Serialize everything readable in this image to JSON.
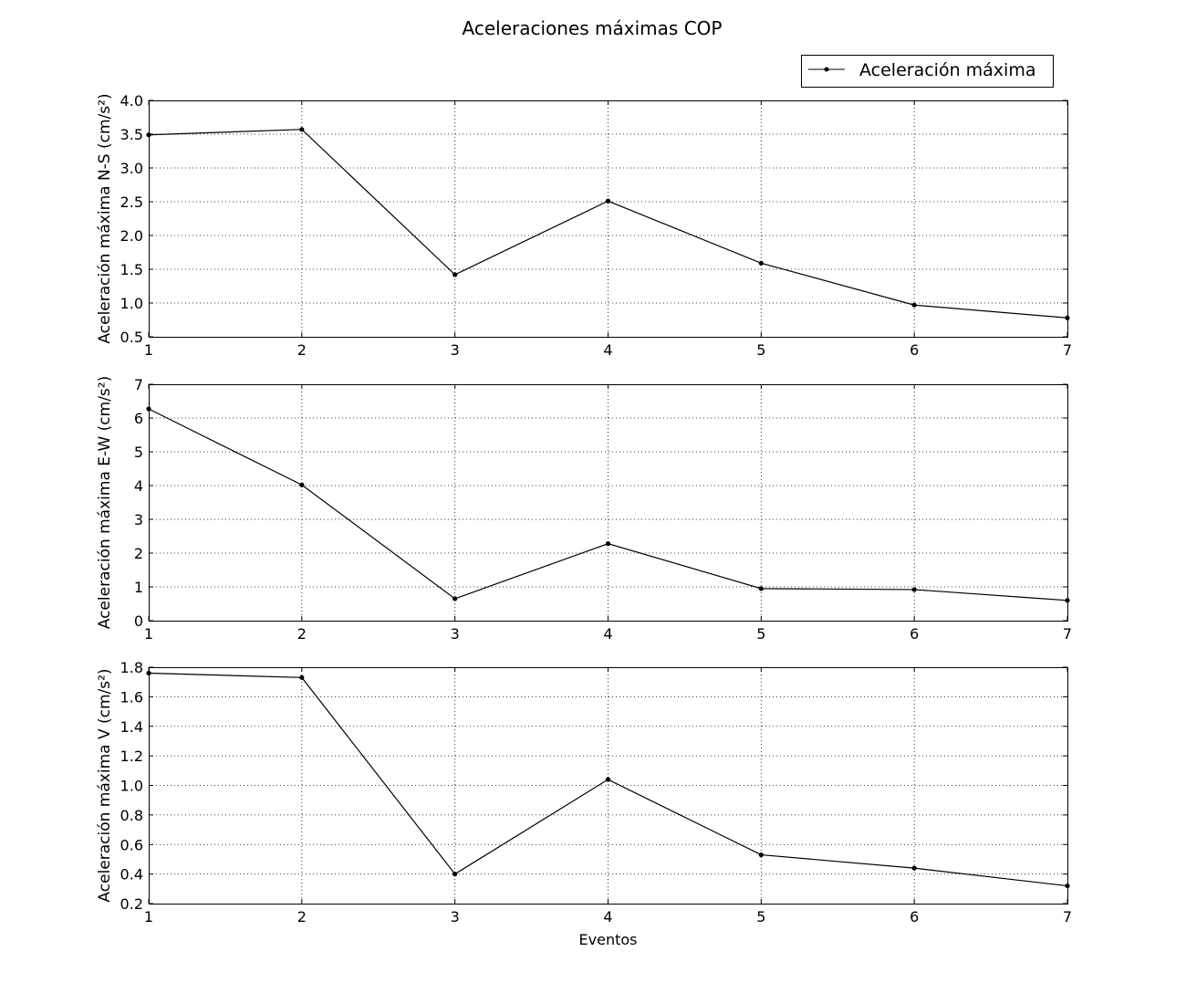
{
  "chart_data": [
    {
      "type": "line",
      "title": "Aceleraciones máximas COP",
      "xlabel": "",
      "ylabel": "Aceleración máxima N-S (cm/s²)",
      "x": [
        1,
        2,
        3,
        4,
        5,
        6,
        7
      ],
      "xlim": [
        1,
        7
      ],
      "ylim": [
        0.5,
        4.0
      ],
      "yticks": [
        "0.5",
        "1.0",
        "1.5",
        "2.0",
        "2.5",
        "3.0",
        "3.5",
        "4.0"
      ],
      "xticks": [
        "1",
        "2",
        "3",
        "4",
        "5",
        "6",
        "7"
      ],
      "grid": true,
      "series": [
        {
          "name": "Aceleración máxima",
          "values": [
            3.49,
            3.57,
            1.42,
            2.51,
            1.59,
            0.97,
            0.78
          ],
          "color": "#000000"
        }
      ],
      "legend": {
        "label": "Aceleración máxima",
        "placement": "top-right"
      }
    },
    {
      "type": "line",
      "xlabel": "",
      "ylabel": "Aceleración máxima E-W (cm/s²)",
      "x": [
        1,
        2,
        3,
        4,
        5,
        6,
        7
      ],
      "xlim": [
        1,
        7
      ],
      "ylim": [
        0,
        7
      ],
      "yticks": [
        "0",
        "1",
        "2",
        "3",
        "4",
        "5",
        "6",
        "7"
      ],
      "xticks": [
        "1",
        "2",
        "3",
        "4",
        "5",
        "6",
        "7"
      ],
      "grid": true,
      "series": [
        {
          "name": "Aceleración máxima",
          "values": [
            6.27,
            4.02,
            0.65,
            2.28,
            0.95,
            0.92,
            0.6
          ],
          "color": "#000000"
        }
      ]
    },
    {
      "type": "line",
      "xlabel": "Eventos",
      "ylabel": "Aceleración máxima V (cm/s²)",
      "x": [
        1,
        2,
        3,
        4,
        5,
        6,
        7
      ],
      "xlim": [
        1,
        7
      ],
      "ylim": [
        0.2,
        1.8
      ],
      "yticks": [
        "0.2",
        "0.4",
        "0.6",
        "0.8",
        "1.0",
        "1.2",
        "1.4",
        "1.6",
        "1.8"
      ],
      "xticks": [
        "1",
        "2",
        "3",
        "4",
        "5",
        "6",
        "7"
      ],
      "grid": true,
      "series": [
        {
          "name": "Aceleración máxima",
          "values": [
            1.76,
            1.73,
            0.4,
            1.04,
            0.53,
            0.44,
            0.32
          ],
          "color": "#000000"
        }
      ]
    }
  ]
}
